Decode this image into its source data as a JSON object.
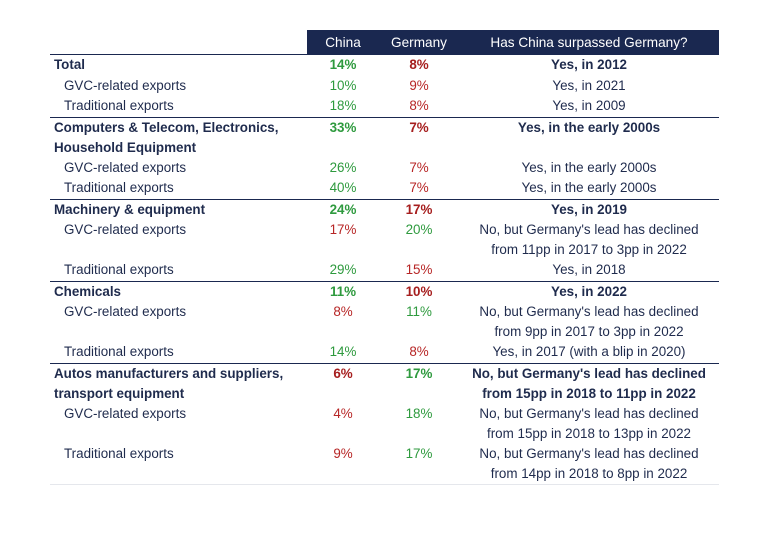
{
  "header": {
    "col_china": "China",
    "col_germany": "Germany",
    "col_answer": "Has China surpassed Germany?"
  },
  "sections": [
    {
      "name": "Total",
      "china": "14%",
      "china_color": "green",
      "germany": "8%",
      "germany_color": "red",
      "answer": [
        "Yes, in 2012"
      ],
      "rows": [
        {
          "name": "GVC-related exports",
          "china": "10%",
          "china_color": "green",
          "germany": "9%",
          "germany_color": "red",
          "answer": [
            "Yes, in 2021"
          ]
        },
        {
          "name": "Traditional exports",
          "china": "18%",
          "china_color": "green",
          "germany": "8%",
          "germany_color": "red",
          "answer": [
            "Yes, in 2009"
          ]
        }
      ]
    },
    {
      "name_lines": [
        "Computers & Telecom, Electronics,",
        "Household Equipment"
      ],
      "china": "33%",
      "china_color": "green",
      "germany": "7%",
      "germany_color": "red",
      "answer": [
        "Yes, in the early 2000s"
      ],
      "rows": [
        {
          "name": "GVC-related exports",
          "china": "26%",
          "china_color": "green",
          "germany": "7%",
          "germany_color": "red",
          "answer": [
            "Yes, in the early 2000s"
          ]
        },
        {
          "name": "Traditional exports",
          "china": "40%",
          "china_color": "green",
          "germany": "7%",
          "germany_color": "red",
          "answer": [
            "Yes, in the early 2000s"
          ]
        }
      ]
    },
    {
      "name": "Machinery & equipment",
      "china": "24%",
      "china_color": "green",
      "germany": "17%",
      "germany_color": "red",
      "answer": [
        "Yes, in 2019"
      ],
      "rows": [
        {
          "name": "GVC-related exports",
          "china": "17%",
          "china_color": "red",
          "germany": "20%",
          "germany_color": "green",
          "answer": [
            "No, but Germany's lead has declined",
            "from 11pp in 2017 to 3pp in 2022"
          ]
        },
        {
          "name": "Traditional exports",
          "china": "29%",
          "china_color": "green",
          "germany": "15%",
          "germany_color": "red",
          "answer": [
            "Yes, in 2018"
          ]
        }
      ]
    },
    {
      "name": "Chemicals",
      "china": "11%",
      "china_color": "green",
      "germany": "10%",
      "germany_color": "red",
      "answer": [
        "Yes, in 2022"
      ],
      "rows": [
        {
          "name": "GVC-related exports",
          "china": "8%",
          "china_color": "red",
          "germany": "11%",
          "germany_color": "green",
          "answer": [
            "No, but Germany's lead has declined",
            "from 9pp in 2017 to 3pp in 2022"
          ]
        },
        {
          "name": "Traditional exports",
          "china": "14%",
          "china_color": "green",
          "germany": "8%",
          "germany_color": "red",
          "answer": [
            "Yes, in 2017 (with a blip in 2020)"
          ]
        }
      ]
    },
    {
      "name_lines": [
        "Autos manufacturers and suppliers,",
        "transport equipment"
      ],
      "china": "6%",
      "china_color": "red",
      "germany": "17%",
      "germany_color": "green",
      "answer": [
        "No, but Germany's lead has declined",
        "from 15pp in 2018 to 11pp in 2022"
      ],
      "rows": [
        {
          "name": "GVC-related exports",
          "china": "4%",
          "china_color": "red",
          "germany": "18%",
          "germany_color": "green",
          "answer": [
            "No, but Germany's lead has declined",
            "from 15pp in 2018 to 13pp in 2022"
          ]
        },
        {
          "name": "Traditional exports",
          "china": "9%",
          "china_color": "red",
          "germany": "17%",
          "germany_color": "green",
          "answer": [
            "No, but Germany's lead has declined",
            "from 14pp in 2018 to 8pp in 2022"
          ]
        }
      ]
    }
  ]
}
